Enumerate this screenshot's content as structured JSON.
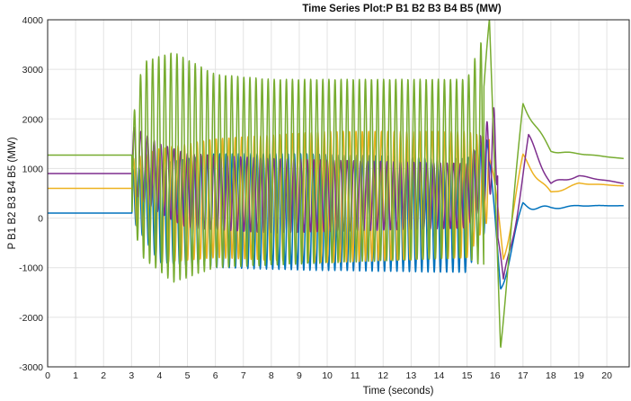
{
  "chart_data": {
    "type": "line",
    "title": "Time Series Plot:P B1 B2 B3 B4 B5 (MW)",
    "xlabel": "Time (seconds)",
    "ylabel": "P B1 B2 B3 B4 B5 (MW)",
    "xlim": [
      0,
      20.8
    ],
    "ylim": [
      -3000,
      4000
    ],
    "xticks": [
      "0",
      "1",
      "2",
      "3",
      "4",
      "5",
      "6",
      "7",
      "8",
      "9",
      "10",
      "11",
      "12",
      "13",
      "14",
      "15",
      "16",
      "17",
      "18",
      "19",
      "20"
    ],
    "yticks": [
      "-3000",
      "-2000",
      "-1000",
      "0",
      "1000",
      "2000",
      "3000",
      "4000"
    ],
    "grid": true,
    "legend": "none",
    "colors": {
      "purple": "#7e2f8e",
      "green": "#77ac30",
      "orange": "#edb120",
      "blue": "#0072bd"
    },
    "series": [
      {
        "color": "#7e2f8e",
        "keypoints": [
          [
            0,
            900
          ],
          [
            3,
            900
          ],
          [
            3.05,
            300
          ],
          [
            3.5,
            1850
          ],
          [
            4,
            500
          ],
          [
            5,
            1300
          ],
          [
            15,
            950
          ],
          [
            15.6,
            2400
          ],
          [
            16.3,
            -1500
          ],
          [
            17.2,
            1600
          ],
          [
            18,
            700
          ],
          [
            19,
            850
          ],
          [
            20.6,
            700
          ]
        ]
      },
      {
        "color": "#77ac30",
        "keypoints": [
          [
            0,
            1270
          ],
          [
            3,
            1270
          ],
          [
            3.05,
            -150
          ],
          [
            3.4,
            3150
          ],
          [
            4.4,
            3350
          ],
          [
            4.9,
            3350
          ],
          [
            5,
            -1300
          ],
          [
            8,
            2800
          ],
          [
            8,
            -950
          ],
          [
            15,
            2800
          ],
          [
            15,
            -800
          ],
          [
            15.8,
            3750
          ],
          [
            16.2,
            -2500
          ],
          [
            17,
            2300
          ],
          [
            18,
            1350
          ],
          [
            19,
            1300
          ],
          [
            20.6,
            1200
          ]
        ]
      },
      {
        "color": "#edb120",
        "keypoints": [
          [
            0,
            600
          ],
          [
            3,
            600
          ],
          [
            3.05,
            -50
          ],
          [
            3.5,
            1400
          ],
          [
            5,
            1600
          ],
          [
            10,
            1750
          ],
          [
            15,
            1750
          ],
          [
            15.7,
            1600
          ],
          [
            16.3,
            -800
          ],
          [
            17,
            1200
          ],
          [
            18,
            500
          ],
          [
            19,
            700
          ],
          [
            20.6,
            650
          ]
        ]
      },
      {
        "color": "#0072bd",
        "keypoints": [
          [
            0,
            100
          ],
          [
            3,
            100
          ],
          [
            3.05,
            -50
          ],
          [
            3.5,
            1000
          ],
          [
            5,
            1300
          ],
          [
            8,
            -1000
          ],
          [
            15,
            -1100
          ],
          [
            15.7,
            1600
          ],
          [
            16.2,
            -1400
          ],
          [
            17,
            250
          ],
          [
            18,
            200
          ],
          [
            19,
            250
          ],
          [
            20.6,
            250
          ]
        ]
      }
    ]
  }
}
